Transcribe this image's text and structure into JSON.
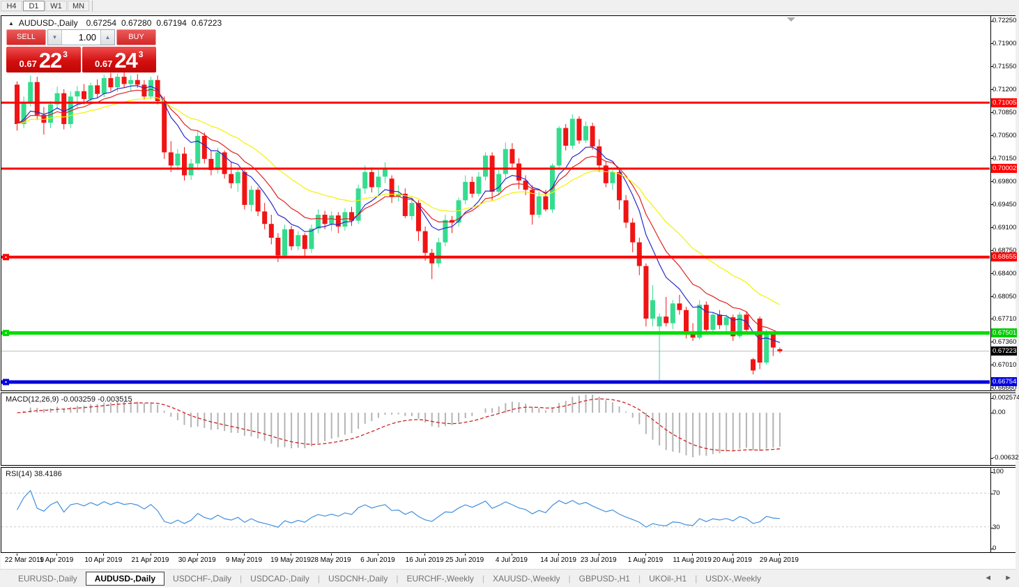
{
  "ui": {
    "toolbar": {
      "timeframes": [
        {
          "label": "H4",
          "active": false
        },
        {
          "label": "D1",
          "active": true
        },
        {
          "label": "W1",
          "active": false
        },
        {
          "label": "MN",
          "active": false
        }
      ]
    },
    "symbol_line": {
      "collapse_icon": "▲",
      "title": "AUDUSD-,Daily",
      "open": "0.67254",
      "high": "0.67280",
      "low": "0.67194",
      "close": "0.67223"
    },
    "trade_panel": {
      "sell_label": "SELL",
      "buy_label": "BUY",
      "volume": "1.00",
      "spinner_down": "▼",
      "spinner_up": "▲",
      "sell_price": {
        "prefix": "0.67",
        "big": "22",
        "sup": "3"
      },
      "buy_price": {
        "prefix": "0.67",
        "big": "24",
        "sup": "3"
      }
    },
    "indicator_labels": {
      "macd": "MACD(12,26,9) -0.003259 -0.003515",
      "rsi": "RSI(14) 38.4186"
    },
    "tabs": {
      "items": [
        {
          "label": "EURUSD-,Daily",
          "active": false
        },
        {
          "label": "AUDUSD-,Daily",
          "active": true
        },
        {
          "label": "USDCHF-,Daily",
          "active": false
        },
        {
          "label": "USDCAD-,Daily",
          "active": false
        },
        {
          "label": "USDCNH-,Daily",
          "active": false
        },
        {
          "label": "EURCHF-,Weekly",
          "active": false
        },
        {
          "label": "XAUUSD-,Weekly",
          "active": false
        },
        {
          "label": "GBPUSD-,H1",
          "active": false
        },
        {
          "label": "UKOil-,H1",
          "active": false
        },
        {
          "label": "USDX-,Weekly",
          "active": false
        }
      ],
      "scroll_left": "◄",
      "scroll_right": "►"
    }
  },
  "colors": {
    "bull": "#35DC8F",
    "bear": "#F01414",
    "ma_fast": "#2828C8",
    "ma_mid": "#E02020",
    "ma_slow": "#F2F200",
    "macd_hist": "#B4B4B4",
    "macd_signal": "#CC2222",
    "rsi_line": "#3F8EDE",
    "level_dashed": "#C9C9C9",
    "line_red": "#FF0000",
    "line_green": "#00DC00",
    "line_blue": "#0000E0",
    "current_line": "#BBBBBB",
    "badge_black": "#000000",
    "shift_marker": "#AAAAAA"
  },
  "chart_data": {
    "type": "candlestick",
    "symbol": "AUDUSD",
    "timeframe": "Daily",
    "price_range": [
      0.6666,
      0.7225
    ],
    "candles": [
      [
        0.7128,
        0.7133,
        0.7058,
        0.7068
      ],
      [
        0.7068,
        0.711,
        0.7062,
        0.71
      ],
      [
        0.71,
        0.7142,
        0.7095,
        0.7132
      ],
      [
        0.7132,
        0.714,
        0.7074,
        0.7082
      ],
      [
        0.7082,
        0.7094,
        0.7052,
        0.707
      ],
      [
        0.707,
        0.7103,
        0.7062,
        0.7098
      ],
      [
        0.7098,
        0.7125,
        0.709,
        0.7115
      ],
      [
        0.7115,
        0.7121,
        0.706,
        0.7068
      ],
      [
        0.7068,
        0.7118,
        0.7062,
        0.711
      ],
      [
        0.711,
        0.7126,
        0.7092,
        0.7118
      ],
      [
        0.7118,
        0.7129,
        0.7098,
        0.7106
      ],
      [
        0.7106,
        0.7131,
        0.71,
        0.7127
      ],
      [
        0.7127,
        0.7136,
        0.7108,
        0.7114
      ],
      [
        0.7114,
        0.7143,
        0.7109,
        0.7138
      ],
      [
        0.7138,
        0.7146,
        0.7118,
        0.7124
      ],
      [
        0.7124,
        0.7145,
        0.7117,
        0.714
      ],
      [
        0.714,
        0.7148,
        0.7123,
        0.7129
      ],
      [
        0.7129,
        0.7142,
        0.7119,
        0.7135
      ],
      [
        0.7135,
        0.7144,
        0.7123,
        0.7128
      ],
      [
        0.7128,
        0.7135,
        0.7105,
        0.711
      ],
      [
        0.711,
        0.714,
        0.7106,
        0.7135
      ],
      [
        0.7135,
        0.7142,
        0.7098,
        0.7103
      ],
      [
        0.7103,
        0.711,
        0.7015,
        0.7025
      ],
      [
        0.7025,
        0.7042,
        0.6995,
        0.7005
      ],
      [
        0.7005,
        0.703,
        0.6998,
        0.7023
      ],
      [
        0.7023,
        0.7033,
        0.6982,
        0.699
      ],
      [
        0.699,
        0.7015,
        0.6983,
        0.7008
      ],
      [
        0.7008,
        0.7058,
        0.7002,
        0.705
      ],
      [
        0.705,
        0.7055,
        0.7008,
        0.7015
      ],
      [
        0.7015,
        0.7028,
        0.699,
        0.6998
      ],
      [
        0.6998,
        0.7032,
        0.6993,
        0.7025
      ],
      [
        0.7025,
        0.7028,
        0.6985,
        0.6992
      ],
      [
        0.6992,
        0.701,
        0.697,
        0.6978
      ],
      [
        0.6978,
        0.7,
        0.6965,
        0.6995
      ],
      [
        0.6995,
        0.6998,
        0.6938,
        0.6945
      ],
      [
        0.6945,
        0.6974,
        0.6935,
        0.6968
      ],
      [
        0.6968,
        0.6972,
        0.6928,
        0.6935
      ],
      [
        0.6935,
        0.6948,
        0.6908,
        0.6916
      ],
      [
        0.6916,
        0.693,
        0.6885,
        0.6895
      ],
      [
        0.6895,
        0.6902,
        0.6858,
        0.6868
      ],
      [
        0.6868,
        0.6915,
        0.6864,
        0.6908
      ],
      [
        0.6908,
        0.6913,
        0.6876,
        0.6882
      ],
      [
        0.6882,
        0.6905,
        0.6876,
        0.6899
      ],
      [
        0.6899,
        0.6902,
        0.6865,
        0.6878
      ],
      [
        0.6878,
        0.6915,
        0.6872,
        0.6909
      ],
      [
        0.6909,
        0.6938,
        0.6902,
        0.693
      ],
      [
        0.693,
        0.6936,
        0.6908,
        0.6916
      ],
      [
        0.6916,
        0.6935,
        0.6905,
        0.6929
      ],
      [
        0.6929,
        0.6934,
        0.6902,
        0.6912
      ],
      [
        0.6912,
        0.694,
        0.6906,
        0.6934
      ],
      [
        0.6934,
        0.6942,
        0.6913,
        0.6921
      ],
      [
        0.6921,
        0.6976,
        0.6916,
        0.697
      ],
      [
        0.697,
        0.7005,
        0.6962,
        0.6995
      ],
      [
        0.6995,
        0.7002,
        0.6964,
        0.6972
      ],
      [
        0.6972,
        0.7,
        0.6961,
        0.6988
      ],
      [
        0.6988,
        0.701,
        0.6978,
        0.7
      ],
      [
        0.6985,
        0.699,
        0.6948,
        0.6958
      ],
      [
        0.6958,
        0.6975,
        0.695,
        0.6962
      ],
      [
        0.6962,
        0.697,
        0.6925,
        0.6928
      ],
      [
        0.6928,
        0.6956,
        0.6922,
        0.6948
      ],
      [
        0.6948,
        0.6952,
        0.689,
        0.6905
      ],
      [
        0.6905,
        0.6912,
        0.686,
        0.6872
      ],
      [
        0.6872,
        0.6878,
        0.6832,
        0.6856
      ],
      [
        0.6856,
        0.6895,
        0.685,
        0.6888
      ],
      [
        0.6888,
        0.693,
        0.6882,
        0.6922
      ],
      [
        0.6922,
        0.6928,
        0.6902,
        0.6918
      ],
      [
        0.6918,
        0.6956,
        0.6912,
        0.6952
      ],
      [
        0.6952,
        0.699,
        0.6946,
        0.698
      ],
      [
        0.698,
        0.6988,
        0.6956,
        0.6962
      ],
      [
        0.6962,
        0.6995,
        0.6958,
        0.6988
      ],
      [
        0.6988,
        0.7025,
        0.6982,
        0.702
      ],
      [
        0.702,
        0.7025,
        0.6952,
        0.6965
      ],
      [
        0.6965,
        0.6998,
        0.696,
        0.6992
      ],
      [
        0.6992,
        0.704,
        0.6986,
        0.703
      ],
      [
        0.703,
        0.7039,
        0.7002,
        0.7008
      ],
      [
        0.7008,
        0.7016,
        0.6969,
        0.6982
      ],
      [
        0.6982,
        0.699,
        0.696,
        0.6968
      ],
      [
        0.6968,
        0.6975,
        0.6915,
        0.693
      ],
      [
        0.693,
        0.6965,
        0.6925,
        0.6958
      ],
      [
        0.6958,
        0.6968,
        0.6935,
        0.6938
      ],
      [
        0.6938,
        0.7008,
        0.6933,
        0.7005
      ],
      [
        0.7005,
        0.7065,
        0.7,
        0.7062
      ],
      [
        0.7062,
        0.7068,
        0.7028,
        0.7035
      ],
      [
        0.7035,
        0.7083,
        0.703,
        0.7076
      ],
      [
        0.7076,
        0.708,
        0.7038,
        0.7043
      ],
      [
        0.7043,
        0.7072,
        0.7039,
        0.7065
      ],
      [
        0.7065,
        0.707,
        0.7029,
        0.7034
      ],
      [
        0.7034,
        0.7045,
        0.6995,
        0.7005
      ],
      [
        0.7005,
        0.7012,
        0.6972,
        0.6978
      ],
      [
        0.6978,
        0.6998,
        0.6968,
        0.6995
      ],
      [
        0.6995,
        0.6999,
        0.6938,
        0.6952
      ],
      [
        0.6952,
        0.696,
        0.691,
        0.6918
      ],
      [
        0.6918,
        0.6925,
        0.6873,
        0.6888
      ],
      [
        0.6888,
        0.6895,
        0.6838,
        0.6852
      ],
      [
        0.6852,
        0.6856,
        0.676,
        0.6772
      ],
      [
        0.6772,
        0.6823,
        0.676,
        0.68
      ],
      [
        0.676,
        0.678,
        0.6677,
        0.6775
      ],
      [
        0.6775,
        0.6805,
        0.676,
        0.6765
      ],
      [
        0.6765,
        0.68,
        0.6756,
        0.6795
      ],
      [
        0.6795,
        0.6808,
        0.6778,
        0.6785
      ],
      [
        0.6785,
        0.679,
        0.6742,
        0.6752
      ],
      [
        0.6752,
        0.6765,
        0.6738,
        0.6743
      ],
      [
        0.6743,
        0.68,
        0.674,
        0.6793
      ],
      [
        0.6793,
        0.6798,
        0.6748,
        0.6755
      ],
      [
        0.6755,
        0.6782,
        0.675,
        0.6778
      ],
      [
        0.6778,
        0.6785,
        0.6756,
        0.6762
      ],
      [
        0.6762,
        0.6778,
        0.6752,
        0.6774
      ],
      [
        0.6774,
        0.6778,
        0.6738,
        0.6745
      ],
      [
        0.6745,
        0.6782,
        0.6742,
        0.6778
      ],
      [
        0.6778,
        0.6783,
        0.6748,
        0.6755
      ],
      [
        0.671,
        0.6712,
        0.6687,
        0.6693
      ],
      [
        0.6772,
        0.6775,
        0.6695,
        0.6705
      ],
      [
        0.6705,
        0.6755,
        0.6702,
        0.6748
      ],
      [
        0.6748,
        0.6752,
        0.6715,
        0.6728
      ],
      [
        0.67254,
        0.6728,
        0.67194,
        0.67223
      ]
    ],
    "time_ticks": [
      {
        "label": "22 Mar 2019",
        "i": 0
      },
      {
        "label": "1 Apr 2019",
        "i": 6
      },
      {
        "label": "10 Apr 2019",
        "i": 13
      },
      {
        "label": "21 Apr 2019",
        "i": 20
      },
      {
        "label": "30 Apr 2019",
        "i": 27
      },
      {
        "label": "9 May 2019",
        "i": 34
      },
      {
        "label": "19 May 2019",
        "i": 41
      },
      {
        "label": "28 May 2019",
        "i": 47
      },
      {
        "label": "6 Jun 2019",
        "i": 54
      },
      {
        "label": "16 Jun 2019",
        "i": 61
      },
      {
        "label": "25 Jun 2019",
        "i": 67
      },
      {
        "label": "4 Jul 2019",
        "i": 74
      },
      {
        "label": "14 Jul 2019",
        "i": 81
      },
      {
        "label": "23 Jul 2019",
        "i": 87
      },
      {
        "label": "1 Aug 2019",
        "i": 94
      },
      {
        "label": "11 Aug 2019",
        "i": 101
      },
      {
        "label": "20 Aug 2019",
        "i": 107
      },
      {
        "label": "29 Aug 2019",
        "i": 114
      }
    ],
    "price_axis": {
      "ticks": [
        "0.72250",
        "0.71900",
        "0.71550",
        "0.71200",
        "0.70850",
        "0.70500",
        "0.70150",
        "0.69800",
        "0.69450",
        "0.69100",
        "0.68750",
        "0.68400",
        "0.68050",
        "0.67710",
        "0.67360",
        "0.67010",
        "0.66660"
      ],
      "badges": [
        {
          "text": "0.71005",
          "color": "#FF0000"
        },
        {
          "text": "0.70002",
          "color": "#FF0000"
        },
        {
          "text": "0.68655",
          "color": "#FF0000"
        },
        {
          "text": "0.67501",
          "color": "#00CC00"
        },
        {
          "text": "0.67223",
          "color": "#000000"
        },
        {
          "text": "0.66754",
          "color": "#0000E0"
        }
      ]
    },
    "hlines": [
      {
        "price": 0.71005,
        "color": "#FF0000",
        "thickness": 3,
        "anchor": false
      },
      {
        "price": 0.70002,
        "color": "#FF0000",
        "thickness": 3,
        "anchor": false
      },
      {
        "price": 0.68655,
        "color": "#FF0000",
        "thickness": 4,
        "anchor": true
      },
      {
        "price": 0.67501,
        "color": "#00DC00",
        "thickness": 5,
        "anchor": true
      },
      {
        "price": 0.66754,
        "color": "#0000E0",
        "thickness": 5,
        "anchor": true
      }
    ],
    "current_price": {
      "value": 0.67223
    },
    "moving_averages": [
      {
        "name": "ema-fast",
        "period": 8,
        "color": "#2828C8"
      },
      {
        "name": "ema-mid",
        "period": 13,
        "color": "#E02020"
      },
      {
        "name": "ema-slow",
        "period": 26,
        "color": "#F2F200"
      }
    ],
    "macd": {
      "params": "12,26,9",
      "value": -0.003259,
      "signal_value": -0.003515,
      "axis_ticks": [
        "0.002574",
        "0.00",
        "-0.006326"
      ]
    },
    "rsi": {
      "period": 14,
      "value": 38.4186,
      "axis_ticks": [
        "100",
        "70",
        "30",
        "0"
      ],
      "levels": [
        70,
        30
      ]
    }
  }
}
